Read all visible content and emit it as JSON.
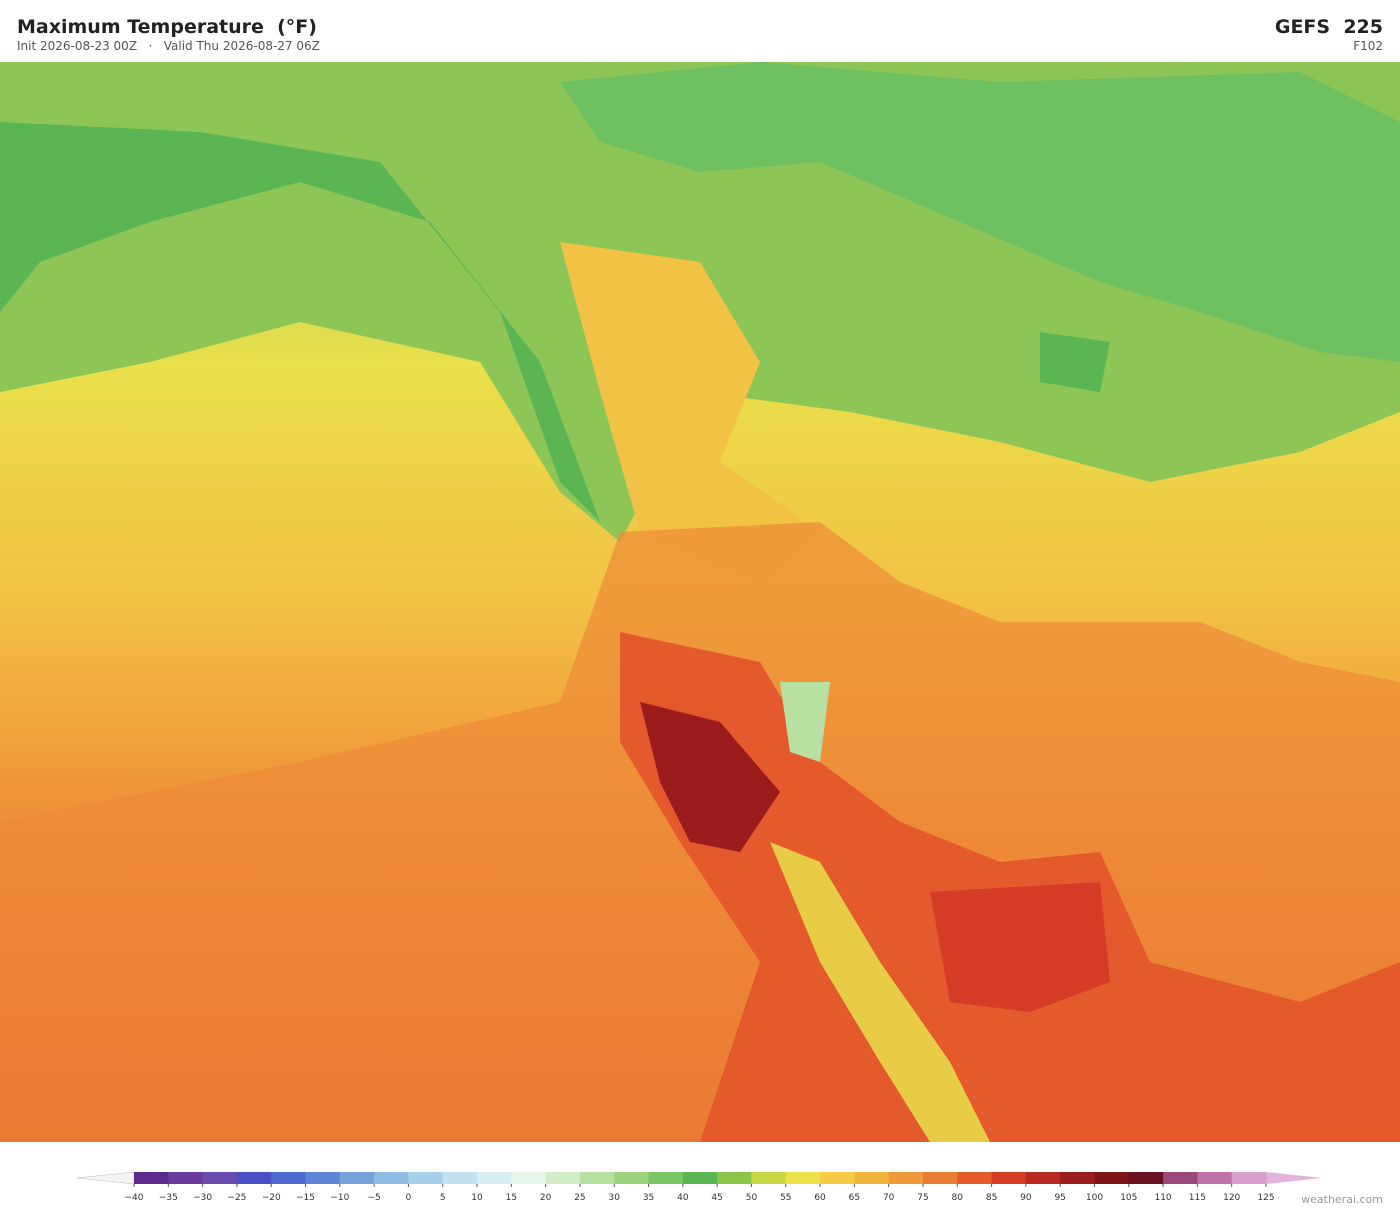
{
  "header": {
    "title": "Maximum Temperature  (°F)",
    "subtitle": "Init 2026-08-23 00Z   ·   Valid Thu 2026-08-27 06Z",
    "model": "GEFS  225",
    "forecast_hour": "F102"
  },
  "colorbar": {
    "ticks": [
      "−40",
      "−35",
      "−30",
      "−25",
      "−20",
      "−15",
      "−10",
      "−5",
      "0",
      "5",
      "10",
      "15",
      "20",
      "25",
      "30",
      "35",
      "40",
      "45",
      "50",
      "55",
      "60",
      "65",
      "70",
      "75",
      "80",
      "85",
      "90",
      "95",
      "100",
      "105",
      "110",
      "115",
      "120",
      "125"
    ],
    "segment_colors": [
      "#5b2a8c",
      "#6a3a9c",
      "#6a4bb0",
      "#4a4fc4",
      "#4e6ad0",
      "#5f86d4",
      "#78a3da",
      "#8fbce2",
      "#a7d1ea",
      "#c2e2ef",
      "#daeef2",
      "#e8f5ea",
      "#d3ecc8",
      "#b9e0a3",
      "#9dd480",
      "#7cc665",
      "#5bb552",
      "#8dc54a",
      "#c8d845",
      "#ece24a",
      "#f4cc45",
      "#f2b640",
      "#f09a3c",
      "#ea7d34",
      "#e45a2c",
      "#d43c26",
      "#b82a22",
      "#9a1c1c",
      "#7c1418",
      "#6a1020",
      "#9a4878",
      "#bf72a8",
      "#d8a0cc"
    ],
    "under_color": "#f4f4f4",
    "over_color": "#e3b4db"
  },
  "watermark": "weatherai.com"
}
